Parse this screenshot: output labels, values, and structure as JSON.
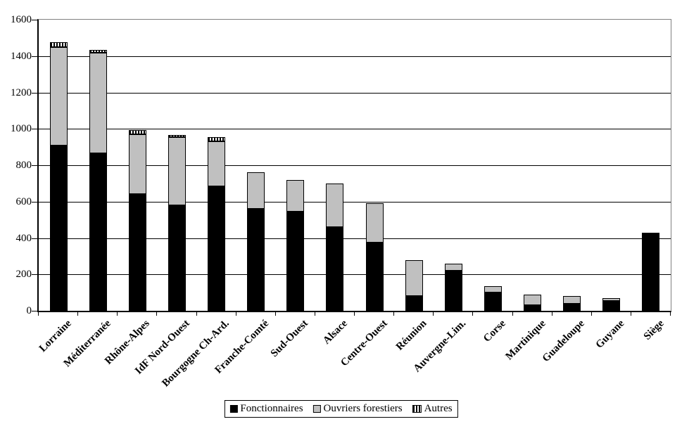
{
  "chart_data": {
    "type": "bar",
    "stacked": true,
    "title": "",
    "xlabel": "",
    "ylabel": "",
    "ylim": [
      0,
      1600
    ],
    "ytick_interval": 200,
    "yticks": [
      "0",
      "200",
      "400",
      "600",
      "800",
      "1000",
      "1200",
      "1400",
      "1600"
    ],
    "grid": true,
    "legend_position": "bottom",
    "categories": [
      "Lorraine",
      "Méditerranée",
      "Rhône-Alpes",
      "IdF Nord-Ouest",
      "Bourgogne Ch-Ard.",
      "Franche-Comté",
      "Sud-Ouest",
      "Alsace",
      "Centre-Ouest",
      "Réunion",
      "Auvergne-Lim.",
      "Corse",
      "Martinique",
      "Guadeloupe",
      "Guyane",
      "Siège"
    ],
    "series": [
      {
        "name": "Fonctionnaires",
        "style": "solid-black",
        "values": [
          910,
          865,
          640,
          580,
          685,
          560,
          545,
          460,
          375,
          80,
          220,
          100,
          30,
          40,
          55,
          430
        ]
      },
      {
        "name": "Ouvriers forestiers",
        "style": "solid-gray",
        "values": [
          540,
          555,
          330,
          375,
          245,
          200,
          175,
          240,
          215,
          200,
          40,
          35,
          60,
          40,
          15,
          0
        ]
      },
      {
        "name": "Autres",
        "style": "striped",
        "values": [
          25,
          15,
          25,
          10,
          25,
          0,
          0,
          0,
          0,
          0,
          0,
          0,
          0,
          0,
          0,
          0
        ]
      }
    ],
    "totals": [
      1475,
      1435,
      995,
      965,
      955,
      760,
      720,
      700,
      590,
      280,
      260,
      135,
      90,
      80,
      70,
      430
    ],
    "colors": {
      "fonctionnaires": "#000000",
      "ouvriers_forestiers": "#c0c0c0",
      "autres_pattern": "black-white-vertical-stripes",
      "gridline": "#000000",
      "plot_border": "#808080",
      "background": "#ffffff"
    }
  }
}
